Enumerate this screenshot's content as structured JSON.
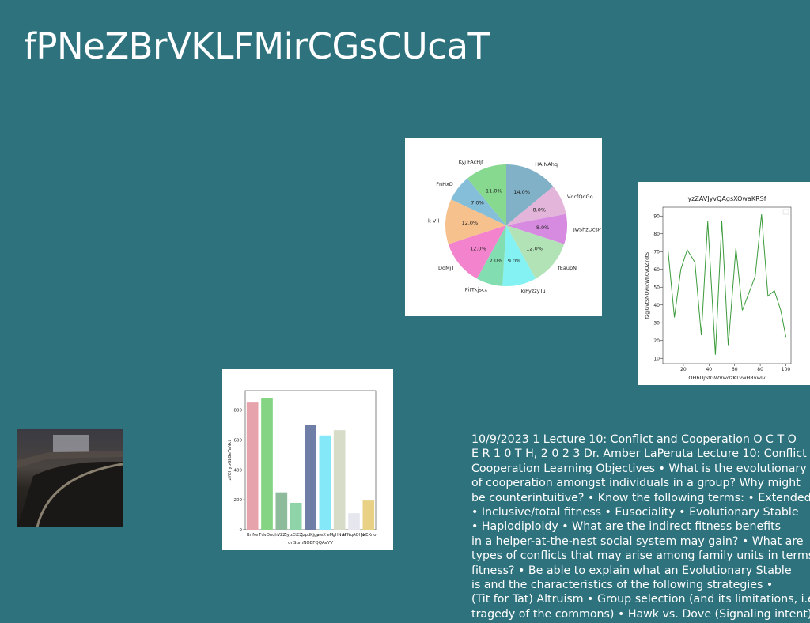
{
  "slide": {
    "title": "fPNeZBrVKLFMirCGsCUcaT",
    "body_lines": [
      "10/9/2023 1 Lecture 10: Conflict and Cooperation O C T O",
      "E R 1 0 T H, 2 0 2 3 Dr. Amber LaPeruta Lecture 10: Conflict",
      "Cooperation Learning Objectives • What is the evolutionary",
      "of cooperation amongst individuals in a group? Why might",
      "be counterintuitive? • Know the following terms: • Extended",
      "• Inclusive/total fitness • Eusociality • Evolutionary Stable",
      "• Haplodiploidy • What are the indirect fitness benefits",
      "in a helper-at-the-nest social system may gain? • What are",
      "types of conflicts that may arise among family units in terms",
      "fitness? • Be able to explain what an Evolutionary Stable",
      "is and the characteristics of the following strategies •",
      "(Tit for Tat) Altruism • Group selection (and its limitations, i.e.",
      "tragedy of the commons) • Hawk vs. Dove (Signaling intent)"
    ]
  },
  "chart_data": [
    {
      "type": "pie",
      "categories": [
        "HAINAhq",
        "VqcfQdGo",
        "JwShzOcsP",
        "fEaupN",
        "kjPyzzyTu",
        "PitTkjscx",
        "DdMjT",
        "k V l",
        "FnHxD",
        "Kyj FAcHjf"
      ],
      "values": [
        14,
        8,
        8,
        12,
        9,
        7,
        12,
        12,
        7,
        11
      ],
      "value_labels": [
        "14.0%",
        "8.0%",
        "8.0%",
        "12.0%",
        "9.0%",
        "7.0%",
        "12.0%",
        "12.0%",
        "7.0%",
        "11.0%"
      ],
      "colors": [
        "#80b1c6",
        "#e4b5da",
        "#d68be0",
        "#b2e3b6",
        "#84f2f2",
        "#82deb0",
        "#f283cc",
        "#f7c18e",
        "#84bed8",
        "#86d98e"
      ]
    },
    {
      "type": "line",
      "title": "yzZAVJyvQAgsXOwaKRSf",
      "xlabel": "OHbUjStGWVwdzKTvwHRvwlv",
      "ylabel": "fzgjGvtSNQwicWhCvQZYdtS",
      "x": [
        8,
        13,
        18,
        23,
        29,
        34,
        39,
        45,
        50,
        55,
        61,
        66,
        76,
        81,
        86,
        91,
        96,
        100
      ],
      "series": [
        {
          "name": "yzZAVJyvQAgsXOwaKRSf",
          "color": "#3a9a3a",
          "values": [
            71,
            33,
            60,
            71,
            64,
            23,
            87,
            12,
            87,
            17,
            72,
            37,
            56,
            91,
            45,
            48,
            37,
            22
          ]
        }
      ],
      "xlim": [
        4,
        104
      ],
      "ylim": [
        7,
        95
      ],
      "xticks": [
        20,
        40,
        60,
        80,
        100
      ],
      "yticks": [
        10,
        20,
        30,
        40,
        50,
        60,
        70,
        80,
        90
      ]
    },
    {
      "type": "bar",
      "xlabel": "onSumNOEFQQAvYV",
      "ylabel": "zYCHyoGLGeYaNkt",
      "categories": [
        "Br Ne",
        "FdvOnq",
        "lhVZZjy",
        "jzEtCZ",
        "jzpdKjgp",
        "aieX eM",
        "gHNwt",
        "AFNqAQhjw",
        "NrEXno"
      ],
      "values": [
        850,
        880,
        250,
        180,
        700,
        630,
        665,
        110,
        195
      ],
      "colors": [
        "#e6a3ab",
        "#84d484",
        "#8dbb9b",
        "#8fd3a8",
        "#6e7ea6",
        "#84e8f8",
        "#d6dcc8",
        "#e6e6ee",
        "#e8d184"
      ],
      "ylim": [
        0,
        930
      ],
      "yticks": [
        0,
        200,
        400,
        600,
        800
      ]
    }
  ]
}
